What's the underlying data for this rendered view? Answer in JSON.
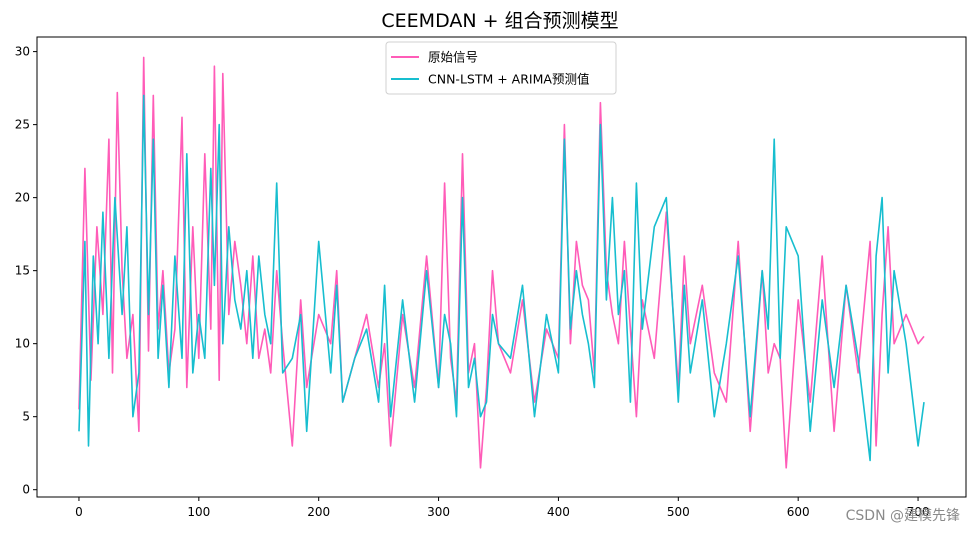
{
  "chart_data": {
    "type": "line",
    "title": "CEEMDAN + 组合预测模型",
    "xlabel": "",
    "ylabel": "",
    "xlim": [
      -35,
      740
    ],
    "ylim": [
      -0.5,
      31
    ],
    "xticks": [
      0,
      100,
      200,
      300,
      400,
      500,
      600,
      700
    ],
    "yticks": [
      0,
      5,
      10,
      15,
      20,
      25,
      30
    ],
    "grid": false,
    "legend_position": "top-center",
    "series": [
      {
        "name": "原始信号",
        "color": "#ff5cb8",
        "x": [
          0,
          5,
          10,
          15,
          20,
          25,
          28,
          32,
          36,
          40,
          45,
          50,
          54,
          58,
          62,
          66,
          70,
          75,
          80,
          86,
          90,
          95,
          100,
          105,
          110,
          113,
          117,
          120,
          125,
          130,
          135,
          140,
          145,
          150,
          155,
          160,
          165,
          170,
          178,
          185,
          190,
          200,
          210,
          215,
          220,
          230,
          240,
          250,
          255,
          260,
          270,
          280,
          290,
          300,
          305,
          310,
          315,
          320,
          325,
          330,
          335,
          340,
          345,
          350,
          360,
          370,
          380,
          390,
          400,
          405,
          410,
          415,
          420,
          425,
          430,
          435,
          440,
          445,
          450,
          455,
          460,
          465,
          470,
          480,
          490,
          500,
          505,
          510,
          520,
          530,
          540,
          550,
          560,
          570,
          575,
          580,
          585,
          590,
          600,
          610,
          620,
          630,
          640,
          650,
          660,
          665,
          670,
          675,
          680,
          690,
          700,
          705
        ],
        "values": [
          5.5,
          22,
          7.5,
          18,
          12,
          24,
          8,
          27.2,
          15,
          9,
          12,
          4,
          29.6,
          9.5,
          27,
          11,
          15,
          8,
          11,
          25.5,
          7,
          18,
          9,
          23,
          11,
          29,
          7.5,
          28.5,
          12,
          17,
          14,
          10,
          16,
          9,
          11,
          8,
          15,
          10,
          3,
          13,
          7,
          12,
          10,
          15,
          6,
          9,
          12,
          7,
          10,
          3,
          12,
          7,
          16,
          7,
          21,
          9,
          6,
          23,
          8,
          10,
          1.5,
          7,
          15,
          10,
          8,
          13,
          6,
          11,
          9,
          25,
          10,
          17,
          14,
          13,
          8,
          26.5,
          15,
          12,
          10,
          17,
          11,
          5,
          13,
          9,
          19,
          7,
          16,
          10,
          14,
          8,
          6,
          17,
          4,
          15,
          8,
          10,
          9,
          1.5,
          13,
          6,
          16,
          4,
          14,
          8,
          17,
          3,
          12,
          18,
          10,
          12,
          10,
          10.5
        ]
      },
      {
        "name": "CNN-LSTM + ARIMA预测值",
        "color": "#17becf",
        "x": [
          0,
          5,
          8,
          12,
          16,
          20,
          25,
          30,
          36,
          40,
          45,
          50,
          54,
          58,
          62,
          66,
          70,
          75,
          80,
          86,
          90,
          95,
          100,
          105,
          110,
          113,
          117,
          120,
          125,
          130,
          135,
          140,
          145,
          150,
          155,
          160,
          165,
          170,
          178,
          185,
          190,
          200,
          210,
          215,
          220,
          230,
          240,
          250,
          255,
          260,
          270,
          280,
          290,
          300,
          305,
          310,
          315,
          320,
          325,
          330,
          335,
          340,
          345,
          350,
          360,
          370,
          380,
          390,
          400,
          405,
          410,
          415,
          420,
          425,
          430,
          435,
          440,
          445,
          450,
          455,
          460,
          465,
          470,
          480,
          490,
          500,
          505,
          510,
          520,
          530,
          540,
          550,
          560,
          570,
          575,
          580,
          585,
          590,
          600,
          610,
          620,
          630,
          640,
          650,
          660,
          665,
          670,
          675,
          680,
          690,
          700,
          705
        ],
        "values": [
          4,
          17,
          3,
          16,
          10,
          19,
          9,
          20,
          12,
          18,
          5,
          8,
          27,
          12,
          24,
          9,
          14,
          7,
          16,
          9,
          23,
          8,
          12,
          9,
          22,
          14,
          25,
          10,
          18,
          13,
          11,
          15,
          9,
          16,
          12,
          10,
          21,
          8,
          9,
          12,
          4,
          17,
          8,
          14,
          6,
          9,
          11,
          6,
          14,
          5,
          13,
          6,
          15,
          7,
          12,
          10,
          5,
          20,
          7,
          9,
          5,
          6,
          12,
          10,
          9,
          14,
          5,
          12,
          8,
          24,
          11,
          15,
          12,
          10,
          7,
          25,
          13,
          20,
          12,
          15,
          6,
          21,
          11,
          18,
          20,
          6,
          14,
          8,
          13,
          5,
          10,
          16,
          5,
          15,
          11,
          24,
          9,
          18,
          16,
          4,
          13,
          7,
          14,
          9,
          2,
          16,
          20,
          8,
          15,
          10,
          3,
          6
        ]
      }
    ]
  },
  "watermark": "CSDN @建模先锋"
}
